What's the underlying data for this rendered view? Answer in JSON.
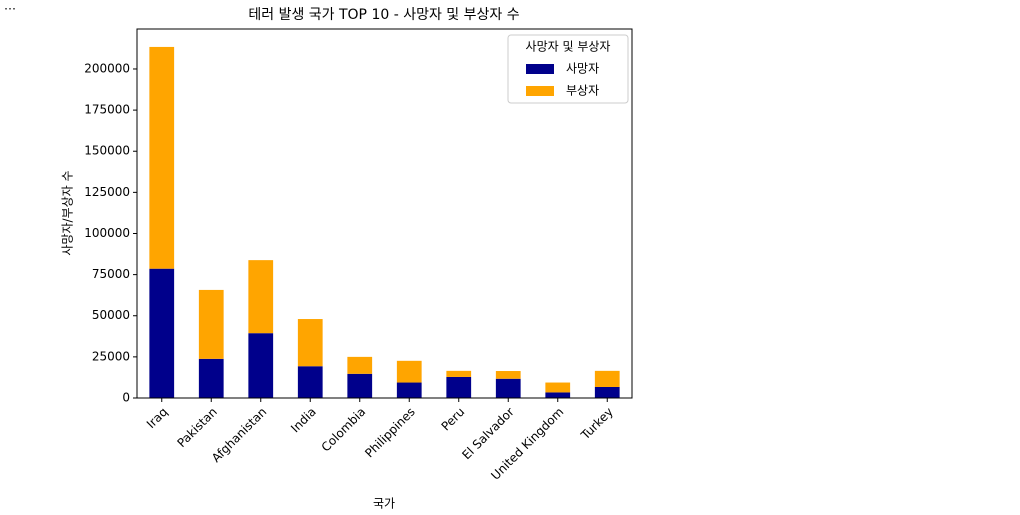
{
  "output_marker": "…",
  "chart_data": {
    "type": "stacked_bar",
    "title": "테러 발생 국가 TOP 10 - 사망자 및 부상자 수",
    "x_label": "국가",
    "y_label": "사망자/부상자 수",
    "legend_title": "사망자 및 부상자",
    "legend_position": "upper-right",
    "categories": [
      "Iraq",
      "Pakistan",
      "Afghanistan",
      "India",
      "Colombia",
      "Philippines",
      "Peru",
      "El Salvador",
      "United Kingdom",
      "Turkey"
    ],
    "series": [
      {
        "name": "사망자",
        "color": "#00008b",
        "values": [
          78600,
          23800,
          39400,
          19300,
          14700,
          9400,
          12800,
          11700,
          3400,
          6700
        ]
      },
      {
        "name": "부상자",
        "color": "#ffa500",
        "values": [
          134800,
          41900,
          44400,
          28700,
          10300,
          13200,
          3700,
          4700,
          6000,
          9800
        ]
      }
    ],
    "ylim": [
      0,
      224300
    ],
    "yticks": [
      0,
      25000,
      50000,
      75000,
      100000,
      125000,
      150000,
      175000,
      200000
    ],
    "grid": false
  }
}
